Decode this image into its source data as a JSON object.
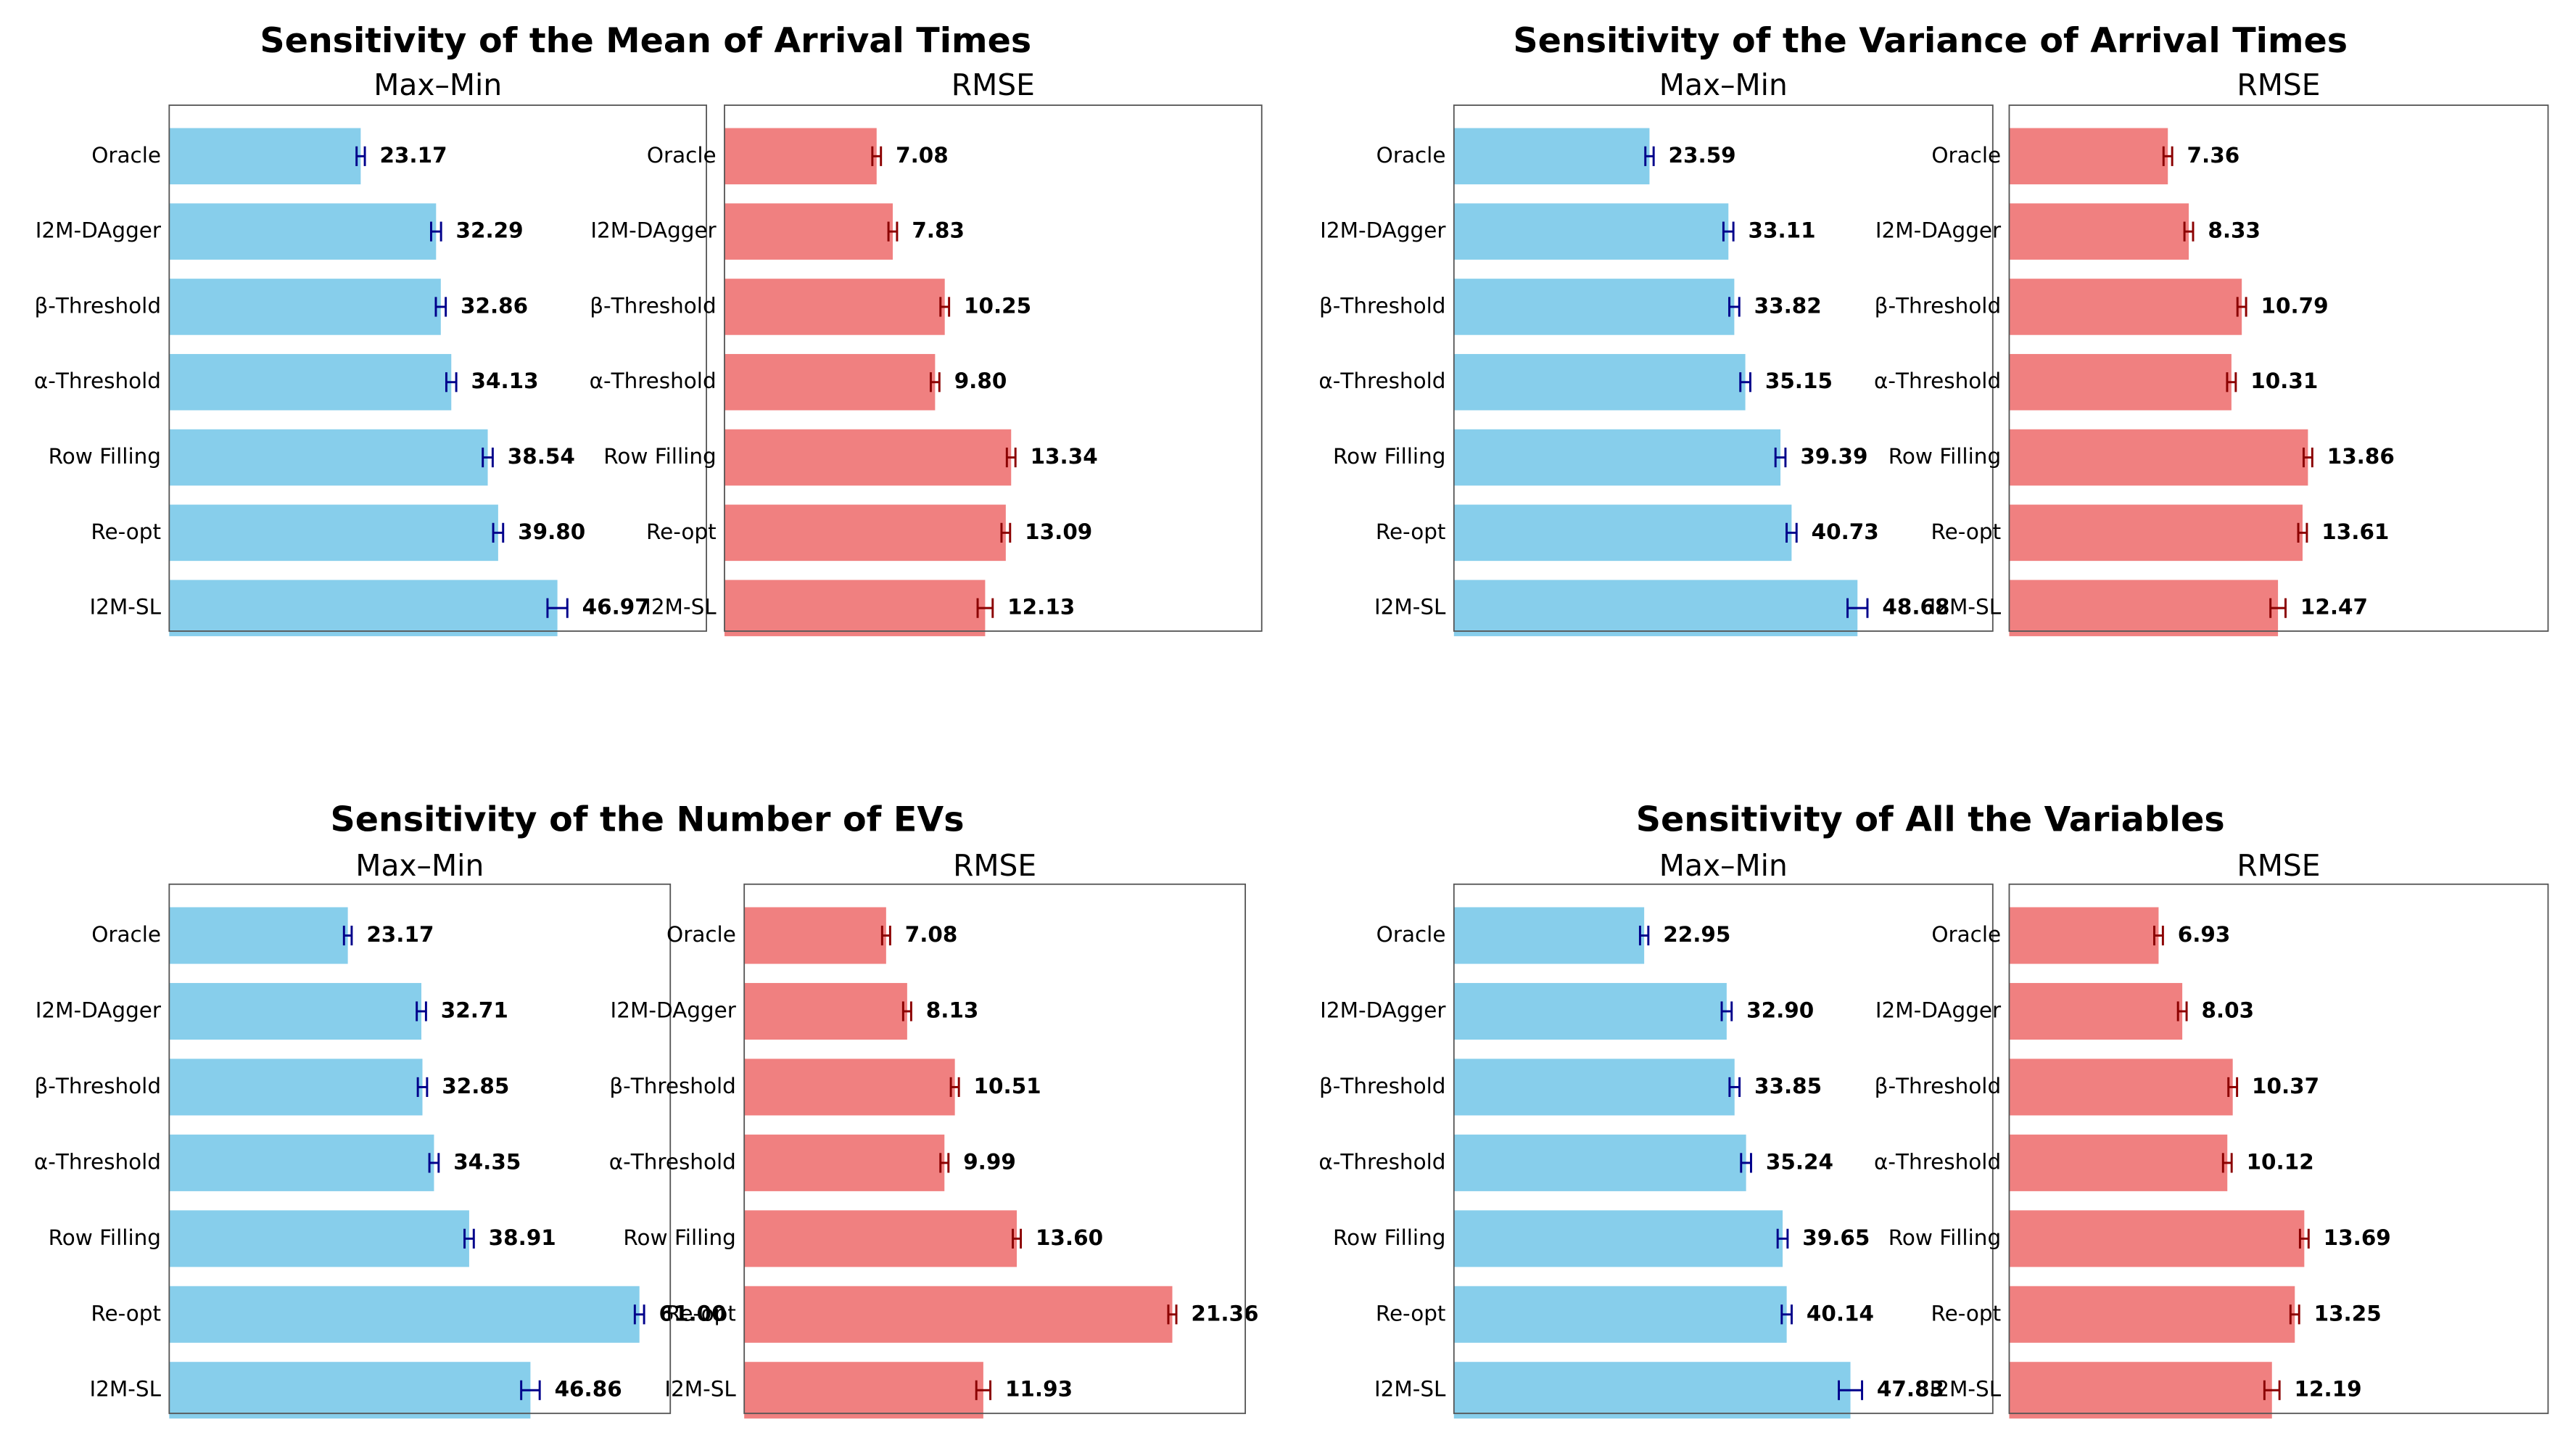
{
  "chart_data": [
    {
      "title": "Sensitivity of the Mean of Arrival Times",
      "subplots": [
        {
          "type": "hbar",
          "title": "Max–Min",
          "color": "#87ceeb",
          "error_color": "#00008b",
          "xlim": [
            0,
            65
          ],
          "categories": [
            "Oracle",
            "I2M-DAgger",
            "β-Threshold",
            "α-Threshold",
            "Row Filling",
            "Re-opt",
            "I2M-SL"
          ],
          "values": [
            23.17,
            32.29,
            32.86,
            34.13,
            38.54,
            39.8,
            46.97
          ],
          "value_labels": [
            "23.17",
            "32.29",
            "32.86",
            "34.13",
            "38.54",
            "39.80",
            "46.97"
          ],
          "errors": [
            0.5,
            0.6,
            0.6,
            0.6,
            0.6,
            0.6,
            1.2
          ]
        },
        {
          "type": "hbar",
          "title": "RMSE",
          "color": "#f08080",
          "error_color": "#8b0000",
          "xlim": [
            0,
            25
          ],
          "categories": [
            "Oracle",
            "I2M-DAgger",
            "β-Threshold",
            "α-Threshold",
            "Row Filling",
            "Re-opt",
            "I2M-SL"
          ],
          "values": [
            7.08,
            7.83,
            10.25,
            9.8,
            13.34,
            13.09,
            12.13
          ],
          "value_labels": [
            "7.08",
            "7.83",
            "10.25",
            "9.80",
            "13.34",
            "13.09",
            "12.13"
          ],
          "errors": [
            0.2,
            0.2,
            0.2,
            0.2,
            0.2,
            0.2,
            0.35
          ]
        }
      ]
    },
    {
      "title": "Sensitivity of the Variance of Arrival Times",
      "subplots": [
        {
          "type": "hbar",
          "title": "Max–Min",
          "color": "#87ceeb",
          "error_color": "#00008b",
          "xlim": [
            0,
            65
          ],
          "categories": [
            "Oracle",
            "I2M-DAgger",
            "β-Threshold",
            "α-Threshold",
            "Row Filling",
            "Re-opt",
            "I2M-SL"
          ],
          "values": [
            23.59,
            33.11,
            33.82,
            35.15,
            39.39,
            40.73,
            48.68
          ],
          "value_labels": [
            "23.59",
            "33.11",
            "33.82",
            "35.15",
            "39.39",
            "40.73",
            "48.68"
          ],
          "errors": [
            0.5,
            0.6,
            0.6,
            0.6,
            0.6,
            0.6,
            1.2
          ]
        },
        {
          "type": "hbar",
          "title": "RMSE",
          "color": "#f08080",
          "error_color": "#8b0000",
          "xlim": [
            0,
            25
          ],
          "categories": [
            "Oracle",
            "I2M-DAgger",
            "β-Threshold",
            "α-Threshold",
            "Row Filling",
            "Re-opt",
            "I2M-SL"
          ],
          "values": [
            7.36,
            8.33,
            10.79,
            10.31,
            13.86,
            13.61,
            12.47
          ],
          "value_labels": [
            "7.36",
            "8.33",
            "10.79",
            "10.31",
            "13.86",
            "13.61",
            "12.47"
          ],
          "errors": [
            0.2,
            0.2,
            0.2,
            0.2,
            0.2,
            0.2,
            0.35
          ]
        }
      ]
    },
    {
      "title": "Sensitivity of the Number of EVs",
      "subplots": [
        {
          "type": "hbar",
          "title": "Max–Min",
          "color": "#87ceeb",
          "error_color": "#00008b",
          "xlim": [
            0,
            65
          ],
          "categories": [
            "Oracle",
            "I2M-DAgger",
            "β-Threshold",
            "α-Threshold",
            "Row Filling",
            "Re-opt",
            "I2M-SL"
          ],
          "values": [
            23.17,
            32.71,
            32.85,
            34.35,
            38.91,
            61.0,
            46.86
          ],
          "value_labels": [
            "23.17",
            "32.71",
            "32.85",
            "34.35",
            "38.91",
            "61.00",
            "46.86"
          ],
          "errors": [
            0.5,
            0.6,
            0.6,
            0.6,
            0.6,
            0.6,
            1.2
          ]
        },
        {
          "type": "hbar",
          "title": "RMSE",
          "color": "#f08080",
          "error_color": "#8b0000",
          "xlim": [
            0,
            25
          ],
          "categories": [
            "Oracle",
            "I2M-DAgger",
            "β-Threshold",
            "α-Threshold",
            "Row Filling",
            "Re-opt",
            "I2M-SL"
          ],
          "values": [
            7.08,
            8.13,
            10.51,
            9.99,
            13.6,
            21.36,
            11.93
          ],
          "value_labels": [
            "7.08",
            "8.13",
            "10.51",
            "9.99",
            "13.60",
            "21.36",
            "11.93"
          ],
          "errors": [
            0.2,
            0.2,
            0.2,
            0.2,
            0.2,
            0.2,
            0.35
          ]
        }
      ]
    },
    {
      "title": "Sensitivity of All the Variables",
      "subplots": [
        {
          "type": "hbar",
          "title": "Max–Min",
          "color": "#87ceeb",
          "error_color": "#00008b",
          "xlim": [
            0,
            65
          ],
          "categories": [
            "Oracle",
            "I2M-DAgger",
            "β-Threshold",
            "α-Threshold",
            "Row Filling",
            "Re-opt",
            "I2M-SL"
          ],
          "values": [
            22.95,
            32.9,
            33.85,
            35.24,
            39.65,
            40.14,
            47.83
          ],
          "value_labels": [
            "22.95",
            "32.90",
            "33.85",
            "35.24",
            "39.65",
            "40.14",
            "47.83"
          ],
          "errors": [
            0.5,
            0.6,
            0.6,
            0.6,
            0.6,
            0.6,
            1.4
          ]
        },
        {
          "type": "hbar",
          "title": "RMSE",
          "color": "#f08080",
          "error_color": "#8b0000",
          "xlim": [
            0,
            25
          ],
          "categories": [
            "Oracle",
            "I2M-DAgger",
            "β-Threshold",
            "α-Threshold",
            "Row Filling",
            "Re-opt",
            "I2M-SL"
          ],
          "values": [
            6.93,
            8.03,
            10.37,
            10.12,
            13.69,
            13.25,
            12.19
          ],
          "value_labels": [
            "6.93",
            "8.03",
            "10.37",
            "10.12",
            "13.69",
            "13.25",
            "12.19"
          ],
          "errors": [
            0.2,
            0.2,
            0.2,
            0.2,
            0.2,
            0.2,
            0.35
          ]
        }
      ]
    }
  ]
}
